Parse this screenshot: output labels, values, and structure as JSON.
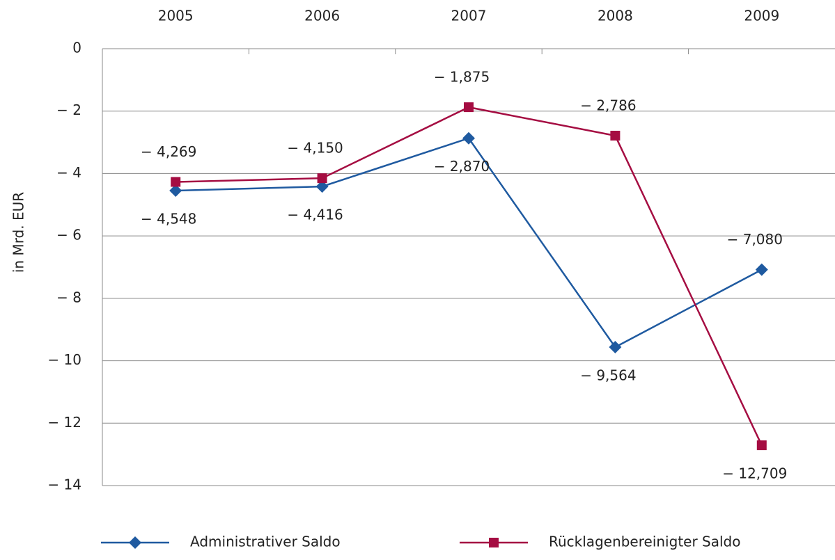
{
  "chart_data": {
    "type": "line",
    "y_label": "in Mrd. EUR",
    "categories": [
      "2005",
      "2006",
      "2007",
      "2008",
      "2009"
    ],
    "series": [
      {
        "name": "Administrativer Saldo",
        "color": "#1f5aa0",
        "marker": "diamond",
        "values": [
          -4.548,
          -4.416,
          -2.87,
          -9.564,
          -7.08
        ],
        "value_labels": [
          "− 4,548",
          "− 4,416",
          "− 2,870",
          "− 9,564",
          "− 7,080"
        ]
      },
      {
        "name": "Rücklagenbereinigter Saldo",
        "color": "#a50d42",
        "marker": "square",
        "values": [
          -4.269,
          -4.15,
          -1.875,
          -2.786,
          -12.709
        ],
        "value_labels": [
          "− 4,269",
          "− 4,150",
          "− 1,875",
          "− 2,786",
          "− 12,709"
        ]
      }
    ],
    "ylim": [
      -14,
      0
    ],
    "yticks": [
      {
        "value": 0,
        "label": "0"
      },
      {
        "value": -2,
        "label": "− 2"
      },
      {
        "value": -4,
        "label": "− 4"
      },
      {
        "value": -6,
        "label": "− 6"
      },
      {
        "value": -8,
        "label": "− 8"
      },
      {
        "value": -10,
        "label": "− 10"
      },
      {
        "value": -12,
        "label": "− 12"
      },
      {
        "value": -14,
        "label": "− 14"
      }
    ],
    "grid": true
  }
}
